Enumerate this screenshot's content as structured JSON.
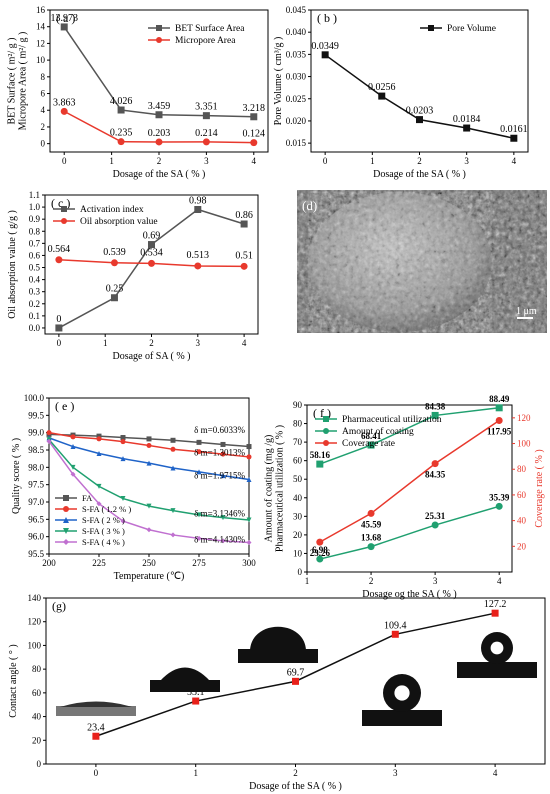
{
  "chart_data": [
    {
      "id": "a",
      "type": "line",
      "panel_label": "( a )",
      "ylabel": "BET Surface ( m²/ g )\nMicropore Area ( m²/ g )",
      "xlabel": "Dosage of the SA ( % )",
      "xlim": [
        -0.3,
        4.3
      ],
      "ylim": [
        -1,
        16
      ],
      "xticks": [
        0,
        1,
        2,
        3,
        4
      ],
      "yticks": [
        0,
        2,
        4,
        6,
        8,
        10,
        12,
        14,
        16
      ],
      "legend_position": "top-right",
      "series": [
        {
          "name": "BET Surface Area",
          "color": "#555555",
          "marker": "square",
          "x": [
            0,
            1.2,
            2,
            3,
            4
          ],
          "y": [
            13.973,
            4.026,
            3.459,
            3.351,
            3.218
          ],
          "labels": [
            "13.973",
            "4.026",
            "3.459",
            "3.351",
            "3.218"
          ]
        },
        {
          "name": "Micropore Area",
          "color": "#e8392d",
          "marker": "circle",
          "x": [
            0,
            1.2,
            2,
            3,
            4
          ],
          "y": [
            3.863,
            0.235,
            0.203,
            0.214,
            0.124
          ],
          "labels": [
            "3.863",
            "0.235",
            "0.203",
            "0.214",
            "0.124"
          ]
        }
      ]
    },
    {
      "id": "b",
      "type": "line",
      "panel_label": "( b )",
      "ylabel": "Pore Volume ( cm³/g )",
      "xlabel": "Dosage of the SA ( % )",
      "xlim": [
        -0.3,
        4.3
      ],
      "ylim": [
        0.013,
        0.045
      ],
      "xticks": [
        0,
        1,
        2,
        3,
        4
      ],
      "yticks": [
        "0.015",
        "0.020",
        "0.025",
        "0.030",
        "0.035",
        "0.040",
        "0.045"
      ],
      "legend_position": "top-right",
      "series": [
        {
          "name": "Pore Volume",
          "color": "#111111",
          "marker": "square",
          "x": [
            0,
            1.2,
            2,
            3,
            4
          ],
          "y": [
            0.0349,
            0.0256,
            0.0203,
            0.0184,
            0.0161
          ],
          "labels": [
            "0.0349",
            "0.0256",
            "0.0203",
            "0.0184",
            "0.0161"
          ]
        }
      ]
    },
    {
      "id": "c",
      "type": "line",
      "panel_label": "( c )",
      "ylabel": "Oil absorption value ( g/g )",
      "xlabel": "Dosage of SA ( % )",
      "xlim": [
        -0.3,
        4.3
      ],
      "ylim": [
        -0.05,
        1.1
      ],
      "xticks": [
        0,
        1,
        2,
        3,
        4
      ],
      "yticks": [
        "0.0",
        "0.1",
        "0.2",
        "0.3",
        "0.4",
        "0.5",
        "0.6",
        "0.7",
        "0.8",
        "0.9",
        "1.0",
        "1.1"
      ],
      "legend_position": "top-left",
      "series": [
        {
          "name": "Activation index",
          "color": "#555555",
          "marker": "square",
          "x": [
            0,
            1.2,
            2,
            3,
            4
          ],
          "y": [
            0,
            0.25,
            0.69,
            0.98,
            0.86
          ],
          "labels": [
            "0",
            "0.25",
            "0.69",
            "0.98",
            "0.86"
          ]
        },
        {
          "name": "Oil absorption value",
          "color": "#e8392d",
          "marker": "circle",
          "x": [
            0,
            1.2,
            2,
            3,
            4
          ],
          "y": [
            0.564,
            0.539,
            0.534,
            0.513,
            0.51
          ],
          "labels": [
            "0.564",
            "0.539",
            "0.534",
            "0.513",
            "0.51"
          ]
        }
      ]
    },
    {
      "id": "e",
      "type": "line",
      "panel_label": "( e )",
      "ylabel": "Quality score ( % )",
      "xlabel": "Temperature (℃)",
      "xlim": [
        200,
        300
      ],
      "ylim": [
        95.5,
        100
      ],
      "xticks": [
        200,
        225,
        250,
        275,
        300
      ],
      "yticks": [
        "95.5",
        "96.0",
        "96.5",
        "97.0",
        "97.5",
        "98.0",
        "98.5",
        "99.0",
        "99.5",
        "100.0"
      ],
      "legend_position": "bottom-left",
      "annotations": [
        "δ m=0.6033%",
        "δ m=1.3013%",
        "δ m=1.9715%",
        "δ m=3.1346%",
        "δ m=4.1430%"
      ],
      "series": [
        {
          "name": "FA",
          "color": "#555555",
          "marker": "square",
          "x": [
            200,
            212,
            225,
            237,
            250,
            262,
            275,
            287,
            300
          ],
          "y": [
            98.95,
            98.93,
            98.9,
            98.86,
            98.82,
            98.78,
            98.72,
            98.66,
            98.6
          ]
        },
        {
          "name": "S-FA ( 1.2 % )",
          "color": "#e8392d",
          "marker": "circle",
          "x": [
            200,
            212,
            225,
            237,
            250,
            262,
            275,
            287,
            300
          ],
          "y": [
            99.0,
            98.88,
            98.82,
            98.74,
            98.63,
            98.52,
            98.45,
            98.38,
            98.3
          ]
        },
        {
          "name": "S-FA ( 2 % )",
          "color": "#1f63c8",
          "marker": "triangle",
          "x": [
            200,
            212,
            225,
            237,
            250,
            262,
            275,
            287,
            300
          ],
          "y": [
            98.85,
            98.6,
            98.4,
            98.25,
            98.12,
            97.98,
            97.87,
            97.76,
            97.65
          ]
        },
        {
          "name": "S-FA ( 3 % )",
          "color": "#20a070",
          "marker": "triangle-down",
          "x": [
            200,
            212,
            225,
            237,
            250,
            262,
            275,
            287,
            300
          ],
          "y": [
            98.8,
            98.0,
            97.45,
            97.1,
            96.88,
            96.75,
            96.63,
            96.55,
            96.48
          ]
        },
        {
          "name": "S-FA ( 4 % )",
          "color": "#c070d0",
          "marker": "diamond",
          "x": [
            200,
            212,
            225,
            237,
            250,
            262,
            275,
            287,
            300
          ],
          "y": [
            98.75,
            97.8,
            96.95,
            96.45,
            96.2,
            96.05,
            95.95,
            95.88,
            95.83
          ]
        }
      ]
    },
    {
      "id": "f",
      "type": "line",
      "panel_label": "( f )",
      "ylabel": "Amount of coating (mg /g)\nPharmaceutical utilization ( % )",
      "ylabel_right": "Coverage rate ( % )",
      "xlabel": "Dosage og the SA ( % )",
      "xlim": [
        1,
        4.2
      ],
      "ylim": [
        0,
        90
      ],
      "ylim_right": [
        0,
        130
      ],
      "xticks": [
        1,
        2,
        3,
        4
      ],
      "yticks": [
        0,
        10,
        20,
        30,
        40,
        50,
        60,
        70,
        80,
        90
      ],
      "yticks_right": [
        20,
        40,
        60,
        80,
        100,
        120
      ],
      "legend_position": "top-left",
      "series": [
        {
          "name": "Pharmaceutical utilization",
          "color": "#20a070",
          "marker": "square",
          "axis": "left",
          "x": [
            1.2,
            2,
            3,
            4
          ],
          "y": [
            58.16,
            68.41,
            84.38,
            88.49
          ],
          "labels": [
            "58.16",
            "68.41",
            "84.38",
            "88.49"
          ]
        },
        {
          "name": "Amount of coating",
          "color": "#20a070",
          "marker": "circle",
          "axis": "left",
          "x": [
            1.2,
            2,
            3,
            4
          ],
          "y": [
            6.98,
            13.68,
            25.31,
            35.39
          ],
          "labels": [
            "6.98",
            "13.68",
            "25.31",
            "35.39"
          ]
        },
        {
          "name": "Coverage rate",
          "color": "#e8392d",
          "marker": "circle",
          "axis": "right",
          "x": [
            1.2,
            2,
            3,
            4
          ],
          "y": [
            23.26,
            45.59,
            84.35,
            117.95
          ],
          "labels": [
            "23.26",
            "45.59",
            "84.35",
            "117.95"
          ]
        }
      ]
    },
    {
      "id": "g",
      "type": "line",
      "panel_label": "(g)",
      "ylabel": "Contact angle ( ° )",
      "xlabel": "Dosage of the SA ( % )",
      "xlim": [
        -0.5,
        4.5
      ],
      "ylim": [
        0,
        140
      ],
      "xticks": [
        0,
        1,
        2,
        3,
        4
      ],
      "yticks": [
        0,
        20,
        40,
        60,
        80,
        100,
        120,
        140
      ],
      "series": [
        {
          "name": "",
          "color": "#111111",
          "marker_color": "#e8201a",
          "marker": "square",
          "x": [
            0,
            1,
            2,
            3,
            4
          ],
          "y": [
            23.4,
            53.1,
            69.7,
            109.4,
            127.2
          ],
          "labels": [
            "23.4",
            "53.1",
            "69.7",
            "109.4",
            "127.2"
          ]
        }
      ]
    }
  ],
  "sem_image": {
    "panel_label": "(d)",
    "scale_bar": "1 μm"
  },
  "droplet_images": [
    "droplet-0",
    "droplet-1",
    "droplet-2",
    "droplet-3",
    "droplet-4"
  ]
}
